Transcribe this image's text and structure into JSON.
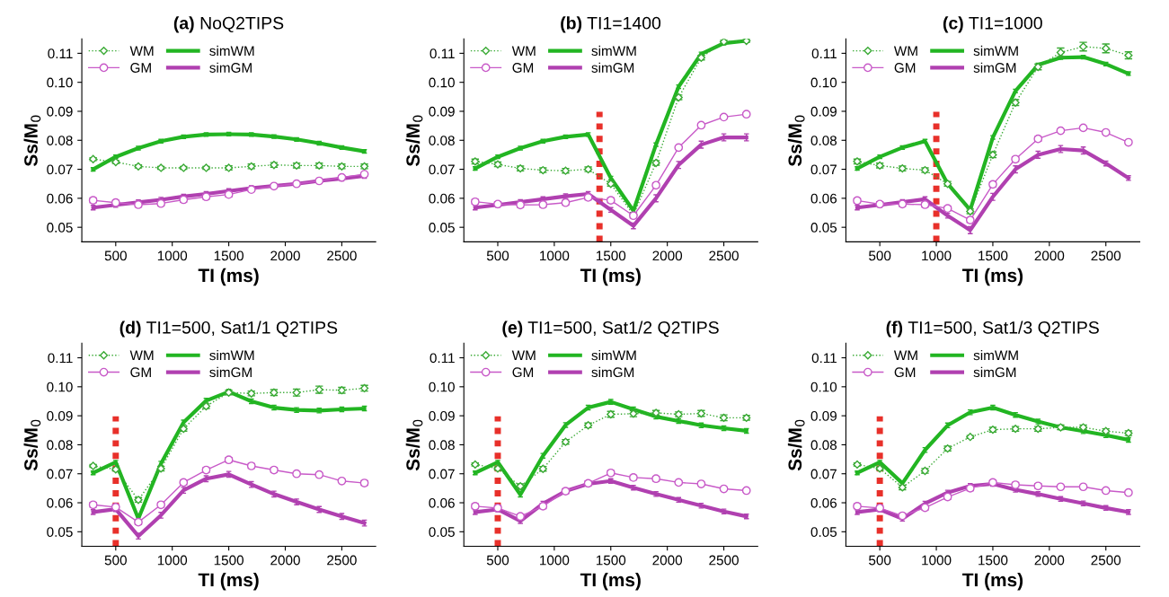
{
  "chart_data": [
    {
      "type": "line",
      "title": "(a) NoQ2TIPS",
      "xlabel": "TI (ms)",
      "ylabel": "Ss/M$_{0}$",
      "x": [
        300,
        500,
        700,
        900,
        1100,
        1300,
        1500,
        1700,
        1900,
        2100,
        2300,
        2500,
        2700
      ],
      "xlim": [
        200,
        2800
      ],
      "ylim": [
        0.045,
        0.115
      ],
      "xticks": [
        500,
        1000,
        1500,
        2000,
        2500
      ],
      "yticks": [
        {
          "value": 0.05,
          "label": "0.05"
        },
        {
          "value": 0.06,
          "label": "0.06"
        },
        {
          "value": 0.07,
          "label": "0.07"
        },
        {
          "value": 0.08,
          "label": "0.08"
        },
        {
          "value": 0.09,
          "label": "0.09"
        },
        {
          "value": 0.1,
          "label": "0.10"
        },
        {
          "value": 0.11,
          "label": "0.11"
        }
      ],
      "legend": "top left",
      "series": [
        {
          "name": "WM",
          "color": "#3aaa35",
          "marker": "diamond",
          "line_style": "dotted",
          "values": [
            0.0735,
            0.0725,
            0.071,
            0.0705,
            0.0705,
            0.0705,
            0.0705,
            0.071,
            0.0715,
            0.0713,
            0.0713,
            0.071,
            0.071
          ],
          "errors": [
            0.0005,
            0.0005,
            0.0005,
            0.0005,
            0.0005,
            0.0005,
            0.0007,
            0.0008,
            0.0008,
            0.0008,
            0.0008,
            0.0008,
            0.0008
          ]
        },
        {
          "name": "GM",
          "color": "#c85ac8",
          "marker": "circle",
          "line_style": "solid",
          "values": [
            0.0593,
            0.0585,
            0.0578,
            0.0582,
            0.0595,
            0.0605,
            0.0613,
            0.063,
            0.0642,
            0.065,
            0.066,
            0.0672,
            0.0683
          ],
          "errors": [
            0.0008,
            0.0008,
            0.0008,
            0.0008,
            0.0008,
            0.0008,
            0.0008,
            0.0006,
            0.0006,
            0.0006,
            0.0005,
            0.0005,
            0.0005
          ]
        },
        {
          "name": "simWM",
          "color": "#22b522",
          "marker": "none",
          "line_style": "solid",
          "values": [
            0.07,
            0.0743,
            0.0773,
            0.0797,
            0.0812,
            0.082,
            0.0821,
            0.082,
            0.0813,
            0.0803,
            0.079,
            0.0775,
            0.0762
          ],
          "errors": [
            0.0006,
            0.0006,
            0.0006,
            0.0006,
            0.0006,
            0.0006,
            0.0006,
            0.0006,
            0.0006,
            0.0006,
            0.0006,
            0.0006,
            0.0006
          ]
        },
        {
          "name": "simGM",
          "color": "#b040b0",
          "marker": "none",
          "line_style": "solid",
          "values": [
            0.0568,
            0.0577,
            0.0586,
            0.0595,
            0.0606,
            0.0615,
            0.0625,
            0.0635,
            0.0643,
            0.065,
            0.066,
            0.0668,
            0.0677
          ],
          "errors": [
            0.0008,
            0.0008,
            0.0008,
            0.0008,
            0.0008,
            0.0008,
            0.0008,
            0.0008,
            0.0008,
            0.0008,
            0.0008,
            0.0008,
            0.0008
          ]
        }
      ]
    },
    {
      "type": "line",
      "title": "(b) TI1=1400",
      "xlabel": "TI (ms)",
      "ylabel": "Ss/M$_{0}$",
      "x": [
        300,
        500,
        700,
        900,
        1100,
        1300,
        1500,
        1700,
        1900,
        2100,
        2300,
        2500,
        2700
      ],
      "xlim": [
        200,
        2800
      ],
      "ylim": [
        0.045,
        0.115
      ],
      "xticks": [
        500,
        1000,
        1500,
        2000,
        2500
      ],
      "yticks": [
        {
          "value": 0.05,
          "label": "0.05"
        },
        {
          "value": 0.06,
          "label": "0.06"
        },
        {
          "value": 0.07,
          "label": "0.07"
        },
        {
          "value": 0.08,
          "label": "0.08"
        },
        {
          "value": 0.09,
          "label": "0.09"
        },
        {
          "value": 0.1,
          "label": "0.10"
        },
        {
          "value": 0.11,
          "label": "0.11"
        }
      ],
      "legend": "top left",
      "ref_lines": [
        {
          "axis": "x",
          "value": 1400,
          "color": "#e8302a",
          "line_style": "dotted"
        }
      ],
      "series": [
        {
          "name": "WM",
          "color": "#3aaa35",
          "marker": "diamond",
          "line_style": "dotted",
          "values": [
            0.0727,
            0.0717,
            0.0703,
            0.0697,
            0.0695,
            0.07,
            0.065,
            0.0543,
            0.0722,
            0.0948,
            0.1085,
            0.114,
            0.1143
          ],
          "errors": [
            0.0008,
            0.0008,
            0.0008,
            0.0008,
            0.0008,
            0.0008,
            0.0008,
            0.0008,
            0.0008,
            0.0008,
            0.0008,
            0.0005,
            0.0005
          ]
        },
        {
          "name": "GM",
          "color": "#c85ac8",
          "marker": "circle",
          "line_style": "solid",
          "values": [
            0.0588,
            0.058,
            0.0577,
            0.0578,
            0.0585,
            0.0603,
            0.0593,
            0.054,
            0.0645,
            0.0775,
            0.0852,
            0.088,
            0.089
          ],
          "errors": [
            0.0008,
            0.0008,
            0.0008,
            0.0008,
            0.0008,
            0.0008,
            0.0008,
            0.0008,
            0.0008,
            0.0005,
            0.0005,
            0.0005,
            0.0005
          ]
        },
        {
          "name": "simWM",
          "color": "#22b522",
          "marker": "none",
          "line_style": "solid",
          "values": [
            0.0703,
            0.0743,
            0.0773,
            0.0797,
            0.0812,
            0.082,
            0.067,
            0.0557,
            0.0785,
            0.0985,
            0.1098,
            0.1135,
            0.1143
          ],
          "errors": [
            0.0006,
            0.0006,
            0.0006,
            0.0006,
            0.0006,
            0.0006,
            0.0006,
            0.0006,
            0.0006,
            0.0006,
            0.0006,
            0.0006,
            0.0006
          ]
        },
        {
          "name": "simGM",
          "color": "#b040b0",
          "marker": "none",
          "line_style": "solid",
          "values": [
            0.0568,
            0.0577,
            0.0587,
            0.0597,
            0.0607,
            0.0615,
            0.056,
            0.0505,
            0.06,
            0.0715,
            0.0785,
            0.081,
            0.081
          ],
          "errors": [
            0.0008,
            0.0008,
            0.0008,
            0.0008,
            0.0008,
            0.0008,
            0.0008,
            0.001,
            0.0012,
            0.0012,
            0.0012,
            0.0012,
            0.0012
          ]
        }
      ]
    },
    {
      "type": "line",
      "title": "(c) TI1=1000",
      "xlabel": "TI (ms)",
      "ylabel": "Ss/M$_{0}$",
      "x": [
        300,
        500,
        700,
        900,
        1100,
        1300,
        1500,
        1700,
        1900,
        2100,
        2300,
        2500,
        2700
      ],
      "xlim": [
        200,
        2800
      ],
      "ylim": [
        0.045,
        0.115
      ],
      "xticks": [
        500,
        1000,
        1500,
        2000,
        2500
      ],
      "yticks": [
        {
          "value": 0.05,
          "label": "0.05"
        },
        {
          "value": 0.06,
          "label": "0.06"
        },
        {
          "value": 0.07,
          "label": "0.07"
        },
        {
          "value": 0.08,
          "label": "0.08"
        },
        {
          "value": 0.09,
          "label": "0.09"
        },
        {
          "value": 0.1,
          "label": "0.10"
        },
        {
          "value": 0.11,
          "label": "0.11"
        }
      ],
      "legend": "top left",
      "ref_lines": [
        {
          "axis": "x",
          "value": 1000,
          "color": "#e8302a",
          "line_style": "dotted"
        }
      ],
      "series": [
        {
          "name": "WM",
          "color": "#3aaa35",
          "marker": "diamond",
          "line_style": "dotted",
          "values": [
            0.0727,
            0.0713,
            0.0703,
            0.0697,
            0.065,
            0.0555,
            0.075,
            0.093,
            0.1053,
            0.1103,
            0.1123,
            0.1117,
            0.1093
          ],
          "errors": [
            0.0008,
            0.0008,
            0.0008,
            0.0008,
            0.0008,
            0.0008,
            0.001,
            0.001,
            0.001,
            0.0015,
            0.0015,
            0.0015,
            0.0012
          ]
        },
        {
          "name": "GM",
          "color": "#c85ac8",
          "marker": "circle",
          "line_style": "solid",
          "values": [
            0.0592,
            0.058,
            0.058,
            0.0578,
            0.0565,
            0.0525,
            0.0648,
            0.0735,
            0.0805,
            0.0833,
            0.0843,
            0.0827,
            0.0793
          ],
          "errors": [
            0.0008,
            0.0008,
            0.0008,
            0.0008,
            0.0008,
            0.0008,
            0.0008,
            0.0008,
            0.0008,
            0.0005,
            0.0005,
            0.0005,
            0.0005
          ]
        },
        {
          "name": "simWM",
          "color": "#22b522",
          "marker": "none",
          "line_style": "solid",
          "values": [
            0.0703,
            0.0743,
            0.0775,
            0.0797,
            0.065,
            0.056,
            0.081,
            0.097,
            0.106,
            0.1085,
            0.1087,
            0.1063,
            0.103
          ],
          "errors": [
            0.0006,
            0.0006,
            0.0006,
            0.0006,
            0.0006,
            0.0006,
            0.0006,
            0.0006,
            0.0006,
            0.0006,
            0.0006,
            0.0006,
            0.0006
          ]
        },
        {
          "name": "simGM",
          "color": "#b040b0",
          "marker": "none",
          "line_style": "solid",
          "values": [
            0.0568,
            0.0577,
            0.0587,
            0.0597,
            0.054,
            0.049,
            0.0605,
            0.07,
            0.075,
            0.077,
            0.0765,
            0.072,
            0.067
          ],
          "errors": [
            0.0008,
            0.0008,
            0.0008,
            0.0008,
            0.0008,
            0.0012,
            0.0012,
            0.0012,
            0.0012,
            0.0012,
            0.0012,
            0.0008,
            0.0008
          ]
        }
      ]
    },
    {
      "type": "line",
      "title": "(d) TI1=500, Sat1/1 Q2TIPS",
      "xlabel": "TI (ms)",
      "ylabel": "Ss/M$_{0}$",
      "x": [
        300,
        500,
        700,
        900,
        1100,
        1300,
        1500,
        1700,
        1900,
        2100,
        2300,
        2500,
        2700
      ],
      "xlim": [
        200,
        2800
      ],
      "ylim": [
        0.045,
        0.115
      ],
      "xticks": [
        500,
        1000,
        1500,
        2000,
        2500
      ],
      "yticks": [
        {
          "value": 0.05,
          "label": "0.05"
        },
        {
          "value": 0.06,
          "label": "0.06"
        },
        {
          "value": 0.07,
          "label": "0.07"
        },
        {
          "value": 0.08,
          "label": "0.08"
        },
        {
          "value": 0.09,
          "label": "0.09"
        },
        {
          "value": 0.1,
          "label": "0.10"
        },
        {
          "value": 0.11,
          "label": "0.11"
        }
      ],
      "legend": "top left",
      "ref_lines": [
        {
          "axis": "x",
          "value": 500,
          "color": "#e8302a",
          "line_style": "dotted"
        }
      ],
      "series": [
        {
          "name": "WM",
          "color": "#3aaa35",
          "marker": "diamond",
          "line_style": "dotted",
          "values": [
            0.0727,
            0.0715,
            0.061,
            0.0718,
            0.0855,
            0.0933,
            0.098,
            0.0977,
            0.098,
            0.098,
            0.099,
            0.0988,
            0.0995
          ],
          "errors": [
            0.0005,
            0.0005,
            0.0008,
            0.0008,
            0.0008,
            0.0008,
            0.0008,
            0.0008,
            0.001,
            0.0012,
            0.0012,
            0.001,
            0.001
          ]
        },
        {
          "name": "GM",
          "color": "#c85ac8",
          "marker": "circle",
          "line_style": "solid",
          "values": [
            0.0593,
            0.0585,
            0.0533,
            0.0593,
            0.067,
            0.0713,
            0.0748,
            0.0727,
            0.0713,
            0.07,
            0.0697,
            0.0675,
            0.0668
          ],
          "errors": [
            0.0008,
            0.0008,
            0.0008,
            0.0008,
            0.0008,
            0.0008,
            0.0008,
            0.0008,
            0.0008,
            0.0005,
            0.0005,
            0.0005,
            0.0008
          ]
        },
        {
          "name": "simWM",
          "color": "#22b522",
          "marker": "none",
          "line_style": "solid",
          "values": [
            0.0703,
            0.074,
            0.0545,
            0.0735,
            0.0877,
            0.0952,
            0.0983,
            0.095,
            0.0928,
            0.092,
            0.0918,
            0.0922,
            0.0925
          ],
          "errors": [
            0.0006,
            0.0006,
            0.0008,
            0.0008,
            0.0008,
            0.0008,
            0.0008,
            0.0008,
            0.0008,
            0.0008,
            0.0008,
            0.0008,
            0.0008
          ]
        },
        {
          "name": "simGM",
          "color": "#b040b0",
          "marker": "none",
          "line_style": "solid",
          "values": [
            0.0568,
            0.0578,
            0.0485,
            0.0557,
            0.0643,
            0.0683,
            0.0698,
            0.0663,
            0.063,
            0.0603,
            0.0577,
            0.0553,
            0.053
          ],
          "errors": [
            0.0008,
            0.0008,
            0.001,
            0.001,
            0.001,
            0.001,
            0.001,
            0.001,
            0.001,
            0.001,
            0.001,
            0.001,
            0.001
          ]
        }
      ]
    },
    {
      "type": "line",
      "title": "(e) TI1=500, Sat1/2 Q2TIPS",
      "xlabel": "TI (ms)",
      "ylabel": "Ss/M$_{0}$",
      "x": [
        300,
        500,
        700,
        900,
        1100,
        1300,
        1500,
        1700,
        1900,
        2100,
        2300,
        2500,
        2700
      ],
      "xlim": [
        200,
        2800
      ],
      "ylim": [
        0.045,
        0.115
      ],
      "xticks": [
        500,
        1000,
        1500,
        2000,
        2500
      ],
      "yticks": [
        {
          "value": 0.05,
          "label": "0.05"
        },
        {
          "value": 0.06,
          "label": "0.06"
        },
        {
          "value": 0.07,
          "label": "0.07"
        },
        {
          "value": 0.08,
          "label": "0.08"
        },
        {
          "value": 0.09,
          "label": "0.09"
        },
        {
          "value": 0.1,
          "label": "0.10"
        },
        {
          "value": 0.11,
          "label": "0.11"
        }
      ],
      "legend": "top left",
      "ref_lines": [
        {
          "axis": "x",
          "value": 500,
          "color": "#e8302a",
          "line_style": "dotted"
        }
      ],
      "series": [
        {
          "name": "WM",
          "color": "#3aaa35",
          "marker": "diamond",
          "line_style": "dotted",
          "values": [
            0.0732,
            0.0718,
            0.0657,
            0.0717,
            0.081,
            0.0867,
            0.0905,
            0.0907,
            0.091,
            0.0905,
            0.0908,
            0.0893,
            0.0893
          ],
          "errors": [
            0.0005,
            0.0005,
            0.0008,
            0.0008,
            0.0008,
            0.0008,
            0.001,
            0.001,
            0.0008,
            0.0008,
            0.001,
            0.001,
            0.0008
          ]
        },
        {
          "name": "GM",
          "color": "#c85ac8",
          "marker": "circle",
          "line_style": "solid",
          "values": [
            0.0588,
            0.0582,
            0.0553,
            0.0588,
            0.064,
            0.0667,
            0.0703,
            0.0687,
            0.0683,
            0.067,
            0.0665,
            0.0648,
            0.0642
          ],
          "errors": [
            0.0008,
            0.0008,
            0.0008,
            0.0008,
            0.0008,
            0.0008,
            0.0008,
            0.0008,
            0.0008,
            0.0005,
            0.0005,
            0.0005,
            0.0005
          ]
        },
        {
          "name": "simWM",
          "color": "#22b522",
          "marker": "none",
          "line_style": "solid",
          "values": [
            0.0703,
            0.074,
            0.0628,
            0.0762,
            0.0868,
            0.0928,
            0.0948,
            0.0922,
            0.0897,
            0.0882,
            0.0867,
            0.0857,
            0.0848
          ],
          "errors": [
            0.0006,
            0.0006,
            0.0008,
            0.0008,
            0.0008,
            0.0008,
            0.0008,
            0.0008,
            0.0008,
            0.0008,
            0.0008,
            0.0008,
            0.0008
          ]
        },
        {
          "name": "simGM",
          "color": "#b040b0",
          "marker": "none",
          "line_style": "solid",
          "values": [
            0.0568,
            0.0577,
            0.0537,
            0.0597,
            0.064,
            0.0665,
            0.0675,
            0.0652,
            0.063,
            0.061,
            0.059,
            0.057,
            0.0553
          ],
          "errors": [
            0.0008,
            0.0008,
            0.0008,
            0.0008,
            0.0008,
            0.0008,
            0.0008,
            0.0008,
            0.0008,
            0.0008,
            0.0008,
            0.0008,
            0.0008
          ]
        }
      ]
    },
    {
      "type": "line",
      "title": "(f) TI1=500, Sat1/3 Q2TIPS",
      "xlabel": "TI (ms)",
      "ylabel": "Ss/M$_{0}$",
      "x": [
        300,
        500,
        700,
        900,
        1100,
        1300,
        1500,
        1700,
        1900,
        2100,
        2300,
        2500,
        2700
      ],
      "xlim": [
        200,
        2800
      ],
      "ylim": [
        0.045,
        0.115
      ],
      "xticks": [
        500,
        1000,
        1500,
        2000,
        2500
      ],
      "yticks": [
        {
          "value": 0.05,
          "label": "0.05"
        },
        {
          "value": 0.06,
          "label": "0.06"
        },
        {
          "value": 0.07,
          "label": "0.07"
        },
        {
          "value": 0.08,
          "label": "0.08"
        },
        {
          "value": 0.09,
          "label": "0.09"
        },
        {
          "value": 0.1,
          "label": "0.10"
        },
        {
          "value": 0.11,
          "label": "0.11"
        }
      ],
      "legend": "top left",
      "ref_lines": [
        {
          "axis": "x",
          "value": 500,
          "color": "#e8302a",
          "line_style": "dotted"
        }
      ],
      "series": [
        {
          "name": "WM",
          "color": "#3aaa35",
          "marker": "diamond",
          "line_style": "dotted",
          "values": [
            0.0732,
            0.0718,
            0.0653,
            0.071,
            0.0787,
            0.0827,
            0.0852,
            0.0855,
            0.0855,
            0.086,
            0.086,
            0.0847,
            0.084
          ],
          "errors": [
            0.0005,
            0.0005,
            0.0008,
            0.0008,
            0.0008,
            0.0005,
            0.0008,
            0.0008,
            0.0008,
            0.0008,
            0.0008,
            0.0008,
            0.0008
          ]
        },
        {
          "name": "GM",
          "color": "#c85ac8",
          "marker": "circle",
          "line_style": "solid",
          "values": [
            0.0588,
            0.0582,
            0.0555,
            0.0583,
            0.062,
            0.065,
            0.067,
            0.0662,
            0.0658,
            0.0655,
            0.0655,
            0.0642,
            0.0635
          ],
          "errors": [
            0.0008,
            0.0008,
            0.0008,
            0.0008,
            0.0008,
            0.0008,
            0.0008,
            0.0008,
            0.0008,
            0.0005,
            0.0005,
            0.0005,
            0.0005
          ]
        },
        {
          "name": "simWM",
          "color": "#22b522",
          "marker": "none",
          "line_style": "solid",
          "values": [
            0.0703,
            0.074,
            0.0667,
            0.0782,
            0.0867,
            0.0912,
            0.0928,
            0.0903,
            0.088,
            0.086,
            0.0847,
            0.0833,
            0.0817
          ],
          "errors": [
            0.0006,
            0.0006,
            0.0008,
            0.0008,
            0.0008,
            0.0008,
            0.0008,
            0.0008,
            0.0008,
            0.0008,
            0.0008,
            0.0008,
            0.0008
          ]
        },
        {
          "name": "simGM",
          "color": "#b040b0",
          "marker": "none",
          "line_style": "solid",
          "values": [
            0.0568,
            0.0577,
            0.0545,
            0.0597,
            0.0635,
            0.0658,
            0.0665,
            0.0645,
            0.063,
            0.0613,
            0.0598,
            0.0582,
            0.0568
          ],
          "errors": [
            0.0008,
            0.0008,
            0.0008,
            0.0008,
            0.0008,
            0.0008,
            0.0008,
            0.0008,
            0.0008,
            0.0008,
            0.0008,
            0.0008,
            0.0008
          ]
        }
      ]
    }
  ]
}
